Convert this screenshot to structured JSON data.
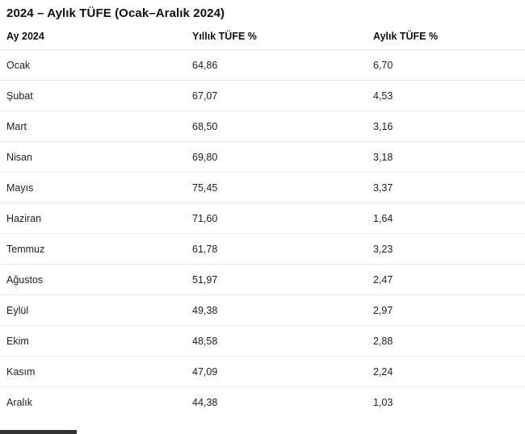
{
  "title": "2024 – Aylık TÜFE (Ocak–Aralık 2024)",
  "table": {
    "columns": [
      "Ay 2024",
      "Yıllık TÜFE %",
      "Aylık TÜFE %"
    ],
    "rows": [
      {
        "month": "Ocak",
        "yearly": "64,86",
        "monthly": "6,70"
      },
      {
        "month": "Şubat",
        "yearly": "67,07",
        "monthly": "4,53"
      },
      {
        "month": "Mart",
        "yearly": "68,50",
        "monthly": "3,16"
      },
      {
        "month": "Nisan",
        "yearly": "69,80",
        "monthly": "3,18"
      },
      {
        "month": "Mayıs",
        "yearly": "75,45",
        "monthly": "3,37"
      },
      {
        "month": "Haziran",
        "yearly": "71,60",
        "monthly": "1,64"
      },
      {
        "month": "Temmuz",
        "yearly": "61,78",
        "monthly": "3,23"
      },
      {
        "month": "Ağustos",
        "yearly": "51,97",
        "monthly": "2,47"
      },
      {
        "month": "Eylül",
        "yearly": "49,38",
        "monthly": "2,97"
      },
      {
        "month": "Ekim",
        "yearly": "48,58",
        "monthly": "2,88"
      },
      {
        "month": "Kasım",
        "yearly": "47,09",
        "monthly": "2,24"
      },
      {
        "month": "Aralık",
        "yearly": "44,38",
        "monthly": "1,03"
      }
    ]
  },
  "colors": {
    "text": "#1f1f1f",
    "title_text": "#111111",
    "divider": "#e6e6e6",
    "background": "#ffffff",
    "scrollbar_thumb": "#333333"
  }
}
